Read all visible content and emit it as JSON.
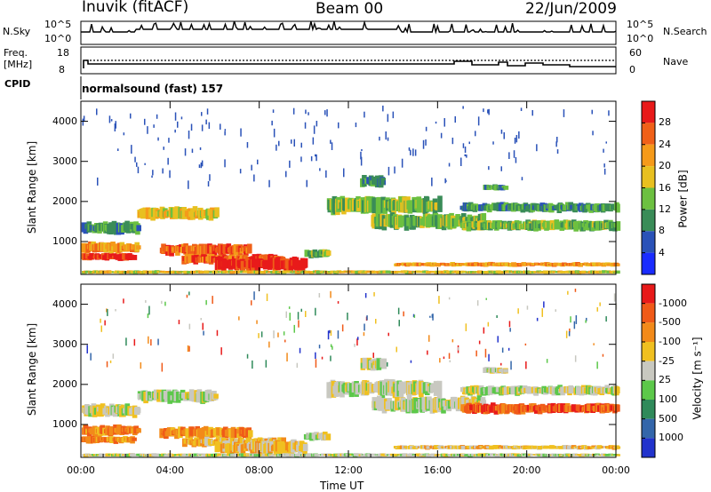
{
  "header": {
    "station": "Inuvik (fitACF)",
    "beam": "Beam 00",
    "date": "22/Jun/2009"
  },
  "noise_panel": {
    "left_label": "N.Sky",
    "left_ticks": [
      "10^5",
      "10^0"
    ],
    "right_label": "N.Search",
    "right_ticks": [
      "10^5",
      "10^0"
    ]
  },
  "freq_panel": {
    "left_label_1": "Freq.",
    "left_label_2": "[MHz]",
    "left_ticks": [
      "18",
      "8"
    ],
    "right_label": "Nave",
    "right_ticks": [
      "60",
      "0"
    ]
  },
  "cpid_panel": {
    "label": "CPID",
    "text": "normalsound (fast) 157"
  },
  "chart_data": [
    {
      "type": "heatmap",
      "name": "power",
      "ylabel": "Slant Range [km]",
      "yticks": [
        "1000",
        "2000",
        "3000",
        "4000"
      ],
      "ylim": [
        180,
        4500
      ],
      "colorbar": {
        "label": "Power [dB]",
        "ticks": [
          "4",
          "8",
          "12",
          "16",
          "20",
          "24",
          "28"
        ],
        "colors": [
          "#1a2cff",
          "#2a52b8",
          "#3a8c58",
          "#6cc040",
          "#e8c020",
          "#f59a1a",
          "#f06018",
          "#e81a1a"
        ]
      }
    },
    {
      "type": "heatmap",
      "name": "velocity",
      "ylabel": "Slant Range [km]",
      "yticks": [
        "1000",
        "2000",
        "3000",
        "4000"
      ],
      "ylim": [
        180,
        4500
      ],
      "colorbar": {
        "label": "Velocity [m s⁻¹]",
        "ticks": [
          "1000",
          "500",
          "100",
          "25",
          "-25",
          "-100",
          "-500",
          "-1000"
        ],
        "colors": [
          "#2233cc",
          "#3366aa",
          "#2f8a5a",
          "#5cc84a",
          "#c8c8c0",
          "#f0c020",
          "#f28a1a",
          "#f05a18",
          "#e81a1a"
        ]
      }
    }
  ],
  "xaxis": {
    "label": "Time UT",
    "ticks": [
      "00:00",
      "04:00",
      "08:00",
      "12:00",
      "16:00",
      "20:00",
      "00:00"
    ]
  }
}
